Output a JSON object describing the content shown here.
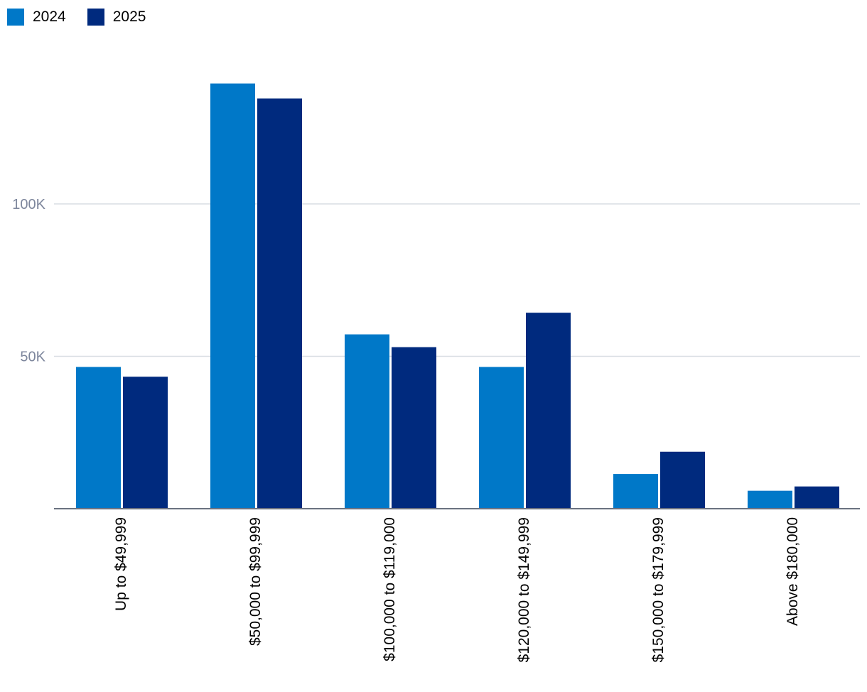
{
  "chart_data": {
    "type": "bar",
    "categories": [
      "Up to $49,999",
      "$50,000 to $99,999",
      "$100,000 to $119,000",
      "$120,000 to $149,999",
      "$150,000 to $179,999",
      "Above $180,000"
    ],
    "series": [
      {
        "name": "2024",
        "color": "#0078c8",
        "values": [
          46500,
          139500,
          57200,
          46500,
          11400,
          5900
        ]
      },
      {
        "name": "2025",
        "color": "#002a7e",
        "values": [
          43300,
          134600,
          53000,
          64300,
          18700,
          7300
        ]
      }
    ],
    "y_ticks": [
      {
        "value": 50000,
        "label": "50K"
      },
      {
        "value": 100000,
        "label": "100K"
      }
    ],
    "ylim": [
      0,
      150000
    ],
    "grid": true,
    "legend_position": "top-left",
    "title": "",
    "xlabel": "",
    "ylabel": ""
  }
}
